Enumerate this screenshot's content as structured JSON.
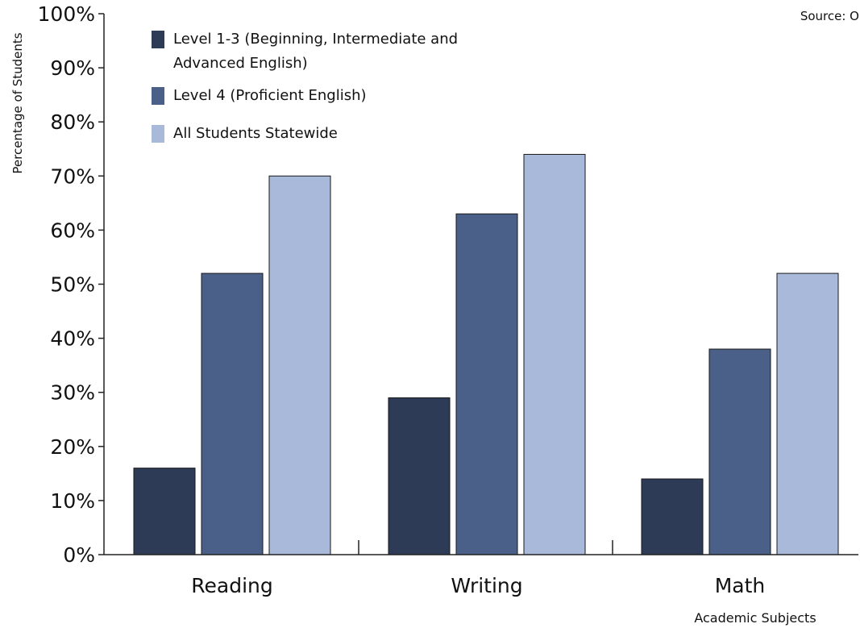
{
  "chart_data": {
    "type": "bar",
    "categories": [
      "Reading",
      "Writing",
      "Math"
    ],
    "series": [
      {
        "name": "Level 1-3 (Beginning, Intermediate and Advanced English)",
        "legend_lines": [
          "Level 1-3 (Beginning, Intermediate and",
          "Advanced English)"
        ],
        "color": "#2d3b57",
        "values": [
          16,
          29,
          14
        ]
      },
      {
        "name": "Level 4 (Proficient English)",
        "legend_lines": [
          "Level 4 (Proficient English)"
        ],
        "color": "#4a6088",
        "values": [
          52,
          63,
          38
        ]
      },
      {
        "name": "All Students Statewide",
        "legend_lines": [
          "All Students Statewide"
        ],
        "color": "#a8b9da",
        "values": [
          70,
          74,
          52
        ]
      }
    ],
    "ylim": [
      0,
      100
    ],
    "yticks": [
      "0%",
      "10%",
      "20%",
      "30%",
      "40%",
      "50%",
      "60%",
      "70%",
      "80%",
      "90%",
      "100%"
    ],
    "ylabel": "Percentage of Students",
    "xlabel": "Academic Subjects",
    "source": "Source: O",
    "legend_position": "top-left",
    "grid": false
  }
}
